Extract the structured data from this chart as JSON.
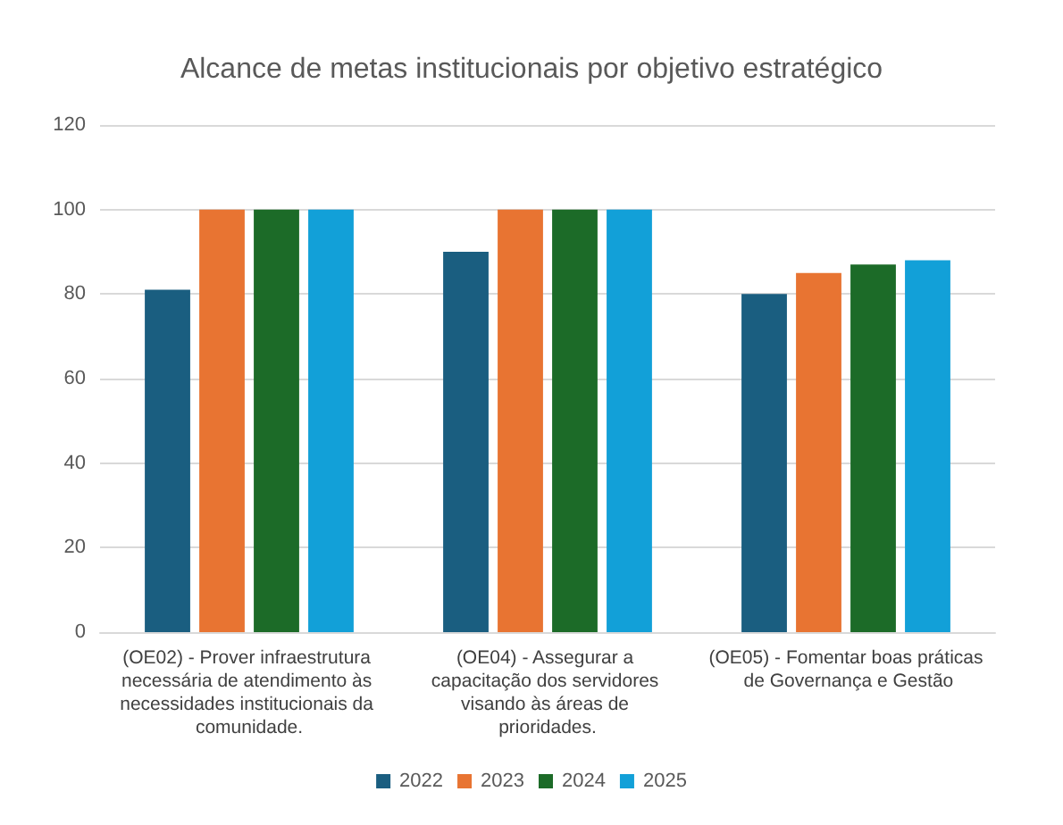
{
  "chart_data": {
    "type": "bar",
    "title": "Alcance de metas institucionais por objetivo estratégico",
    "categories": [
      "(OE02) - Prover infraestrutura necessária de atendimento às necessidades institucionais da comunidade.",
      "(OE04) - Assegurar a capacitação dos servidores visando às áreas de prioridades.",
      "(OE05) - Fomentar boas práticas de Governança e Gestão"
    ],
    "series": [
      {
        "name": "2022",
        "color": "#1a5e80",
        "values": [
          81,
          90,
          80
        ]
      },
      {
        "name": "2023",
        "color": "#e87432",
        "values": [
          100,
          100,
          85
        ]
      },
      {
        "name": "2024",
        "color": "#1c6b28",
        "values": [
          100,
          100,
          87
        ]
      },
      {
        "name": "2025",
        "color": "#12a0d8",
        "values": [
          100,
          100,
          88
        ]
      }
    ],
    "ylim": [
      0,
      120
    ],
    "yticks": [
      0,
      20,
      40,
      60,
      80,
      100,
      120
    ],
    "grid": "y",
    "legend": "bottom"
  }
}
